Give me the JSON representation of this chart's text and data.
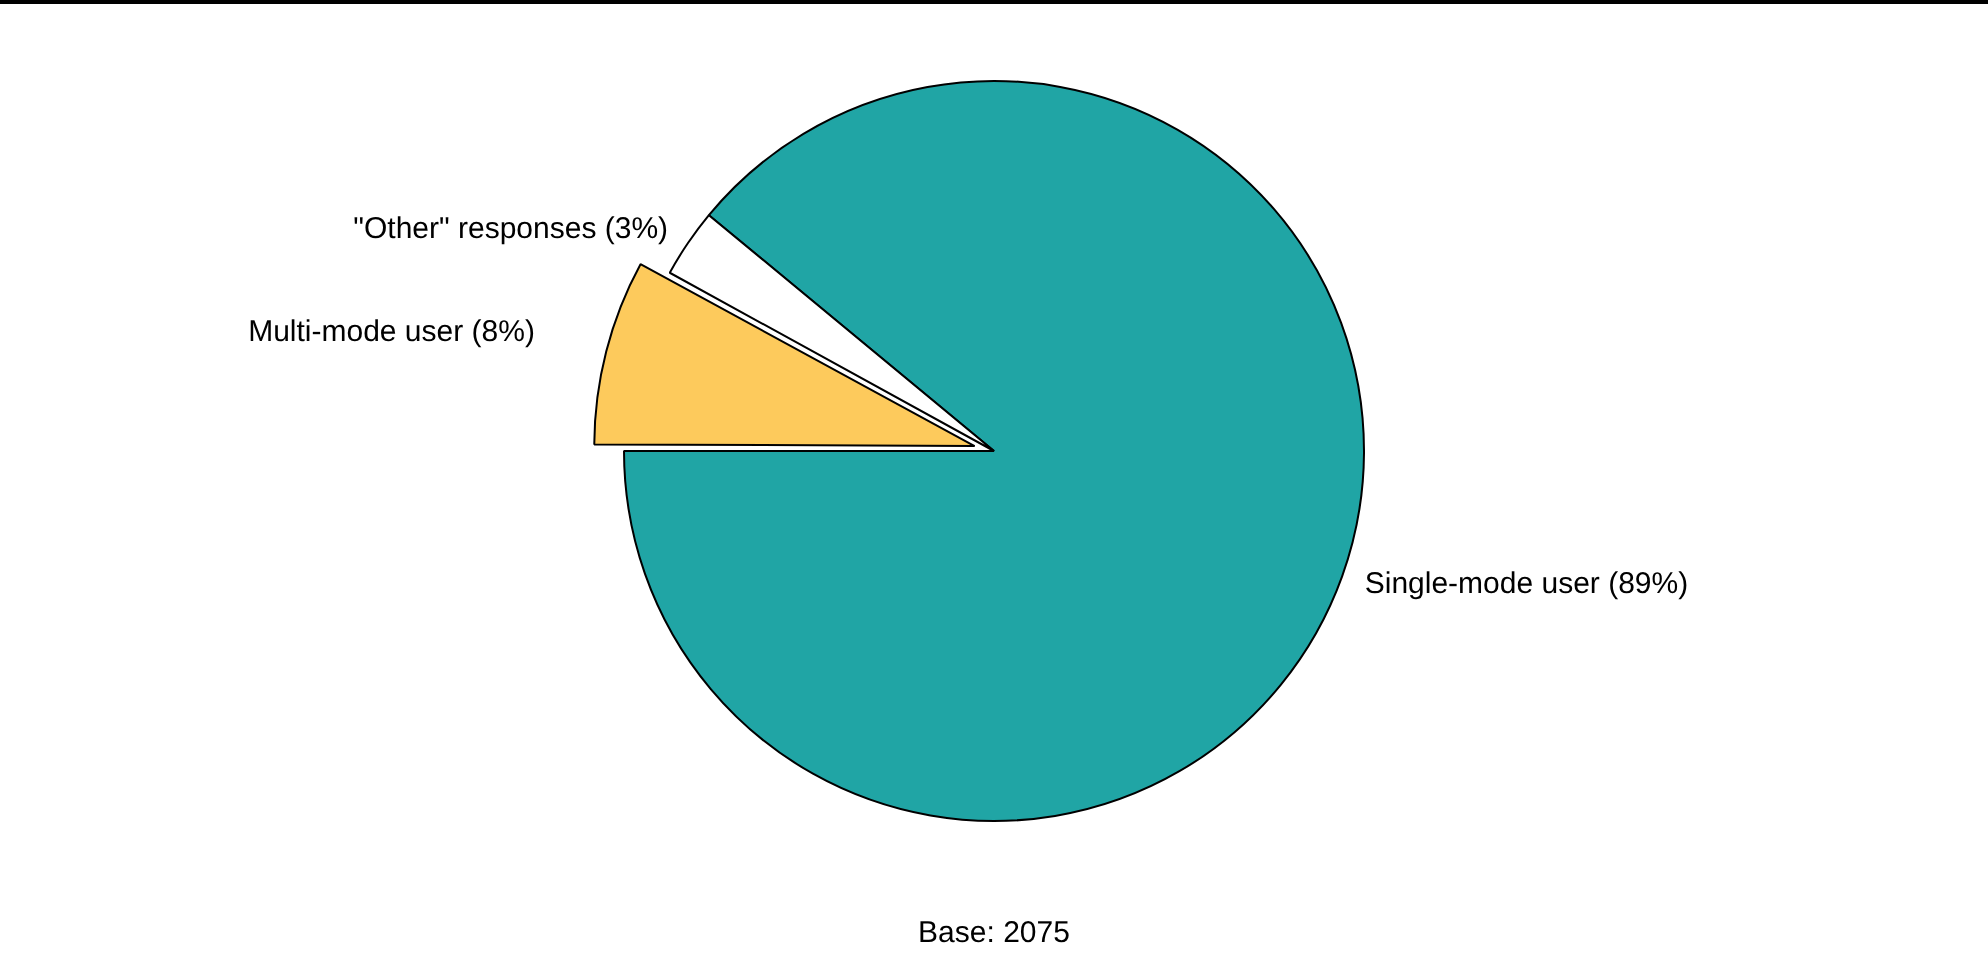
{
  "chart_data": {
    "type": "pie",
    "categories": [
      "Single-mode user (89%)",
      "Multi-mode user (8%)",
      "\"Other\" responses (3%)"
    ],
    "values": [
      89,
      8,
      3
    ],
    "colors": [
      "#20a5a5",
      "#fdca5c",
      "#ffffff"
    ],
    "annotations": [
      "Base: 2075"
    ],
    "legend": false
  }
}
